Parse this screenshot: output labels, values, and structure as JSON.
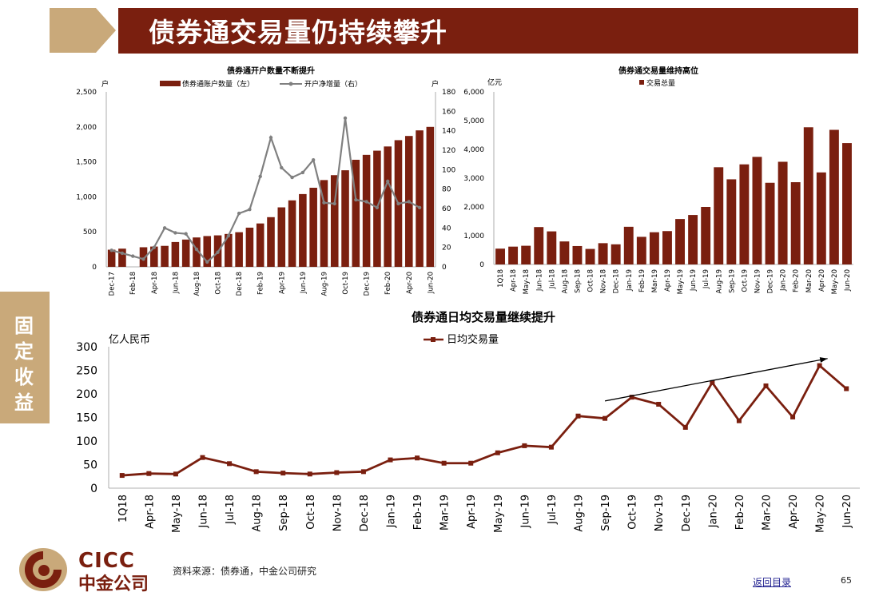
{
  "header": {
    "title": "债券通交易量仍持续攀升"
  },
  "sidebar": {
    "section_label": "固定收益"
  },
  "footer": {
    "source": "资料来源：债券通，中金公司研究",
    "back_link": "返回目录",
    "page_number": "65"
  },
  "logo": {
    "en": "CICC",
    "cn": "中金公司"
  },
  "colors": {
    "brand": "#7a1f0f",
    "accent": "#c9a97a",
    "line_gray": "#808080"
  },
  "chart_data": [
    {
      "type": "bar+line",
      "title": "债券通开户数量不断提升",
      "ylabel_left": "户",
      "ylabel_right": "户",
      "ylim_left": [
        0,
        2500
      ],
      "ylim_right": [
        0,
        180
      ],
      "yticks_left": [
        "0",
        "500",
        "1,000",
        "1,500",
        "2,000",
        "2,500"
      ],
      "yticks_right": [
        "0",
        "20",
        "40",
        "60",
        "80",
        "100",
        "120",
        "140",
        "160",
        "180"
      ],
      "tick_labels": [
        "Dec-17",
        "Feb-18",
        "Apr-18",
        "Jun-18",
        "Aug-18",
        "Oct-18",
        "Dec-18",
        "Feb-19",
        "Apr-19",
        "Jun-19",
        "Aug-19",
        "Oct-19",
        "Dec-19",
        "Feb-20",
        "Apr-20",
        "Jun-20"
      ],
      "series": [
        {
          "name": "债券通账户数量（左）",
          "type": "bar",
          "axis": "left",
          "color": "#7a1f0f",
          "values": [
            245,
            260,
            0,
            280,
            290,
            300,
            355,
            390,
            420,
            440,
            450,
            470,
            495,
            560,
            620,
            710,
            850,
            950,
            1040,
            1130,
            1240,
            1310,
            1380,
            1530,
            1600,
            1660,
            1720,
            1810,
            1870,
            1950,
            2000
          ]
        },
        {
          "name": "开户净增量（右）",
          "type": "line",
          "axis": "right",
          "color": "#808080",
          "values": [
            17,
            14,
            11,
            8,
            20,
            40,
            35,
            34,
            18,
            5,
            15,
            32,
            55,
            59,
            93,
            133,
            102,
            92,
            97,
            110,
            66,
            65,
            153,
            69,
            67,
            61,
            88,
            65,
            67,
            61
          ]
        }
      ]
    },
    {
      "type": "bar",
      "title": "债券通交易量维持高位",
      "ylabel": "亿元",
      "ylim": [
        0,
        6000
      ],
      "yticks": [
        "0",
        "1,000",
        "2,000",
        "3,000",
        "4,000",
        "5,000",
        "6,000"
      ],
      "categories": [
        "1Q18",
        "Apr-18",
        "May-18",
        "Jun-18",
        "Jul-18",
        "Aug-18",
        "Sep-18",
        "Oct-18",
        "Nov-18",
        "Dec-18",
        "Jan-19",
        "Feb-19",
        "Mar-19",
        "Apr-19",
        "May-19",
        "Jun-19",
        "Jul-19",
        "Aug-19",
        "Sep-19",
        "Oct-19",
        "Nov-19",
        "Dec-19",
        "Jan-20",
        "Feb-20",
        "Mar-20",
        "Apr-20",
        "May-20",
        "Jun-20"
      ],
      "series": [
        {
          "name": "交易总量",
          "color": "#7a1f0f",
          "values": [
            550,
            620,
            650,
            1300,
            1150,
            800,
            640,
            540,
            740,
            700,
            1310,
            960,
            1120,
            1160,
            1580,
            1720,
            2000,
            3380,
            2960,
            3480,
            3740,
            2840,
            3570,
            2860,
            4770,
            3200,
            4680,
            4220
          ]
        }
      ]
    },
    {
      "type": "line",
      "title": "债券通日均交易量继续提升",
      "ylabel": "亿人民币",
      "ylim": [
        0,
        300
      ],
      "yticks": [
        "0",
        "50",
        "100",
        "150",
        "200",
        "250",
        "300"
      ],
      "categories": [
        "1Q18",
        "Apr-18",
        "May-18",
        "Jun-18",
        "Jul-18",
        "Aug-18",
        "Sep-18",
        "Oct-18",
        "Nov-18",
        "Dec-18",
        "Jan-19",
        "Feb-19",
        "Mar-19",
        "Apr-19",
        "May-19",
        "Jun-19",
        "Jul-19",
        "Aug-19",
        "Sep-19",
        "Oct-19",
        "Nov-19",
        "Dec-19",
        "Jan-20",
        "Feb-20",
        "Mar-20",
        "Apr-20",
        "May-20",
        "Jun-20"
      ],
      "series": [
        {
          "name": "日均交易量",
          "color": "#7a1f0f",
          "values": [
            27,
            31,
            30,
            65,
            52,
            35,
            32,
            30,
            33,
            35,
            60,
            64,
            53,
            53,
            75,
            90,
            87,
            153,
            148,
            193,
            178,
            129,
            224,
            143,
            217,
            151,
            260,
            211
          ]
        }
      ],
      "annotation": "trend-arrow"
    }
  ]
}
